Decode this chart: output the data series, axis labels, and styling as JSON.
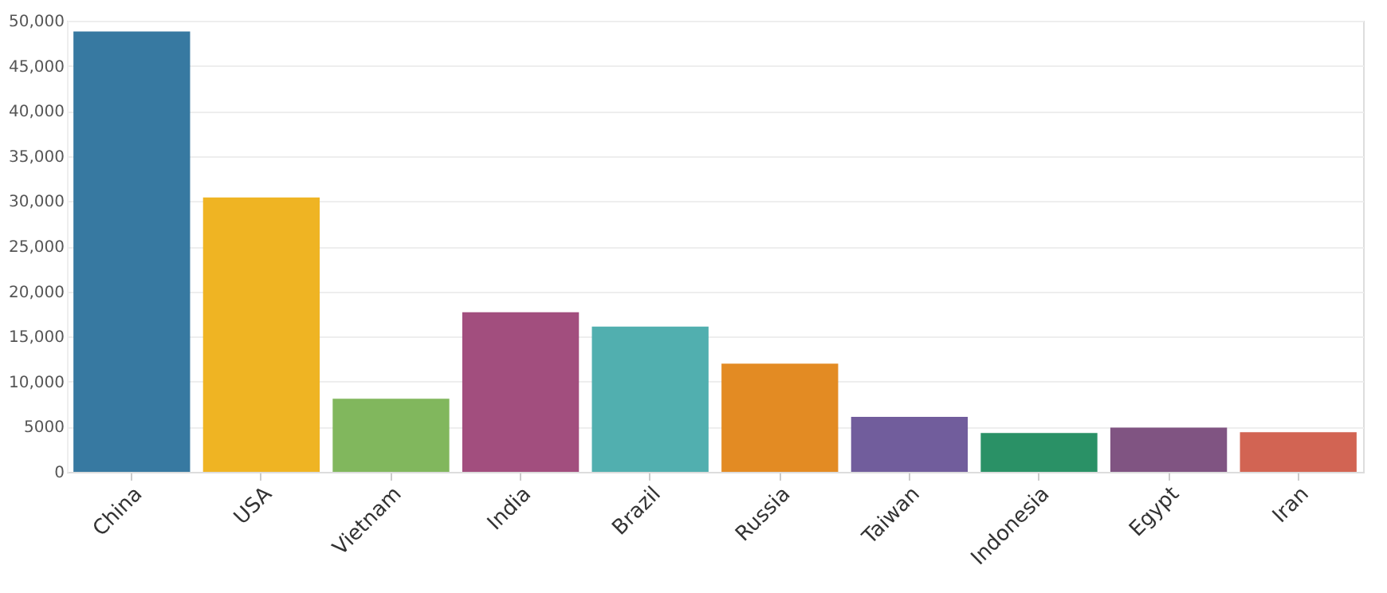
{
  "chart_data": {
    "type": "bar",
    "categories": [
      "China",
      "USA",
      "Vietnam",
      "India",
      "Brazil",
      "Russia",
      "Taiwan",
      "Indonesia",
      "Egypt",
      "Iran"
    ],
    "values": [
      48800,
      30400,
      8100,
      17700,
      16100,
      12000,
      6100,
      4300,
      4900,
      4400
    ],
    "colors": [
      "#33769f",
      "#efb21f",
      "#7eb65a",
      "#a04a7b",
      "#4eadad",
      "#e2891f",
      "#6e5a9a",
      "#268f63",
      "#7d5180",
      "#d16150"
    ],
    "ylim": [
      0,
      50000
    ],
    "yticks": [
      0,
      5000,
      {
        "value": 10000,
        "label": "10,000"
      },
      {
        "value": 15000,
        "label": "15,000"
      },
      {
        "value": 20000,
        "label": "20,000"
      },
      {
        "value": 25000,
        "label": "25,000"
      },
      {
        "value": 30000,
        "label": "30,000"
      },
      {
        "value": 35000,
        "label": "35,000"
      },
      {
        "value": 40000,
        "label": "40,000"
      },
      {
        "value": 45000,
        "label": "45,000"
      },
      {
        "value": 50000,
        "label": "50,000"
      }
    ],
    "grid": "y"
  }
}
